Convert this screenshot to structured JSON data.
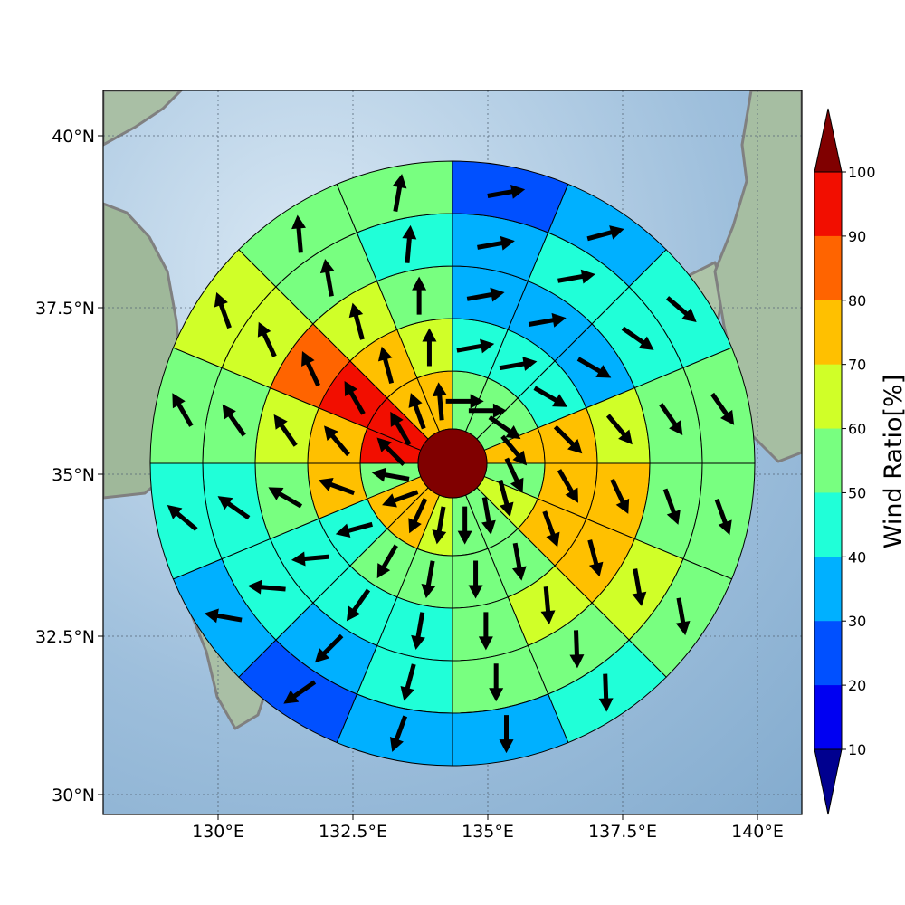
{
  "map": {
    "x_ticks": [
      "130°E",
      "132.5°E",
      "135°E",
      "137.5°E",
      "140°E"
    ],
    "y_ticks": [
      "40°N",
      "37.5°N",
      "35°N",
      "32.5°N",
      "30°N"
    ],
    "gridlines": true,
    "background": "shaded relief terrain with ocean"
  },
  "colorbar": {
    "label": "Wind Ratio[%]",
    "ticks": [
      "10",
      "20",
      "30",
      "40",
      "50",
      "60",
      "70",
      "80",
      "90",
      "100"
    ],
    "colors": [
      "#00008f",
      "#0000f2",
      "#0050ff",
      "#00b0ff",
      "#20ffd8",
      "#78ff80",
      "#d0ff28",
      "#ffc000",
      "#ff6400",
      "#f20e00",
      "#800000"
    ],
    "extend": "both"
  },
  "chart_data": {
    "type": "polar-grid",
    "center": {
      "lon": "134.75°E",
      "lat": "35.25°N"
    },
    "rings": 5,
    "sectors": 16,
    "sector_order": "clockwise from north",
    "center_ratio_percent": 100,
    "ring_sector_ratio_percent": [
      [
        55,
        55,
        55,
        75,
        55,
        65,
        55,
        55,
        65,
        75,
        75,
        55,
        95,
        95,
        75,
        75
      ],
      [
        45,
        45,
        45,
        75,
        75,
        75,
        55,
        55,
        55,
        55,
        45,
        75,
        75,
        95,
        75,
        65
      ],
      [
        35,
        35,
        35,
        65,
        75,
        75,
        65,
        55,
        45,
        45,
        45,
        55,
        65,
        85,
        65,
        55
      ],
      [
        35,
        45,
        45,
        55,
        55,
        65,
        55,
        55,
        45,
        35,
        45,
        45,
        55,
        65,
        55,
        45
      ],
      [
        25,
        35,
        45,
        55,
        55,
        55,
        45,
        35,
        35,
        25,
        35,
        45,
        55,
        65,
        55,
        55
      ]
    ],
    "wind_direction_deg": [
      [
        90,
        90,
        125,
        140,
        155,
        165,
        170,
        180,
        190,
        205,
        250,
        280,
        315,
        330,
        340,
        355
      ],
      [
        80,
        80,
        120,
        135,
        150,
        160,
        170,
        180,
        190,
        210,
        255,
        290,
        320,
        330,
        345,
        0
      ],
      [
        80,
        80,
        120,
        140,
        155,
        165,
        175,
        180,
        190,
        215,
        265,
        300,
        325,
        335,
        345,
        0
      ],
      [
        80,
        80,
        125,
        145,
        160,
        170,
        178,
        180,
        195,
        225,
        275,
        305,
        325,
        335,
        350,
        5
      ],
      [
        80,
        75,
        130,
        145,
        160,
        170,
        178,
        180,
        200,
        235,
        280,
        310,
        330,
        340,
        355,
        10
      ]
    ]
  }
}
